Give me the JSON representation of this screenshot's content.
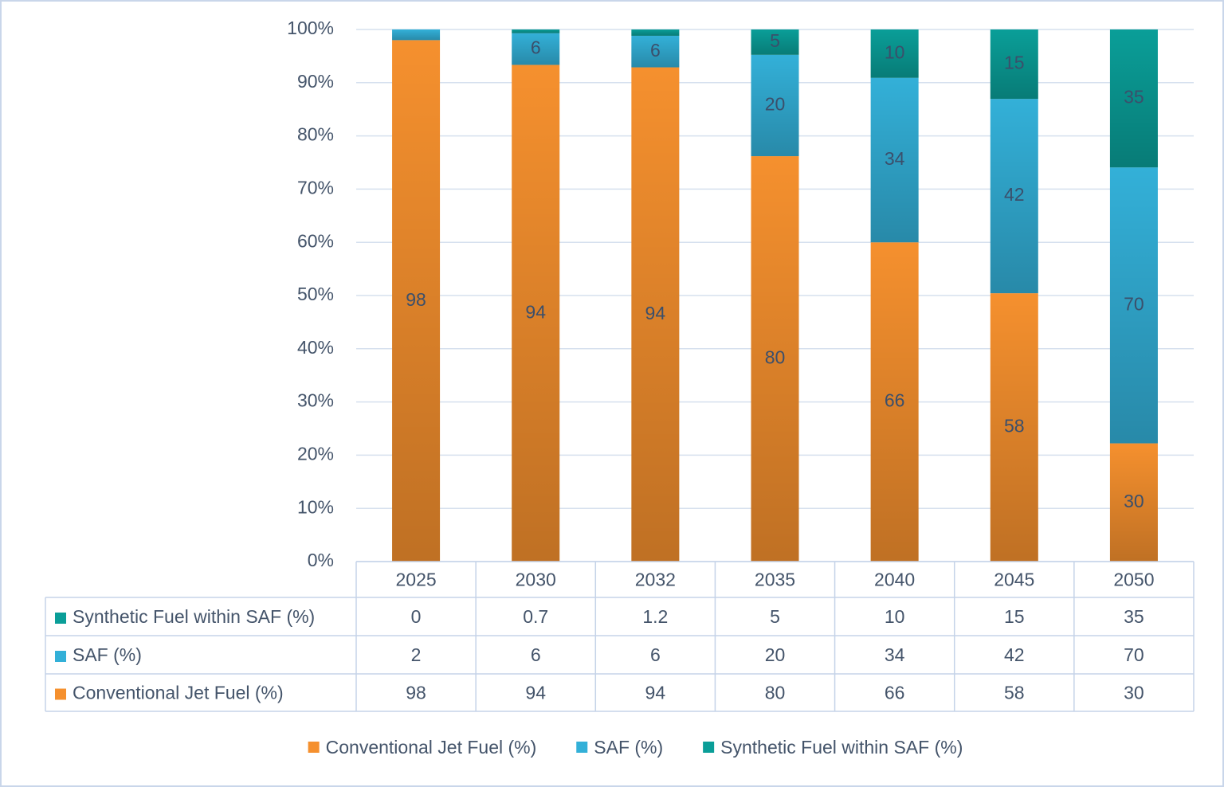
{
  "chart_data": {
    "type": "bar",
    "stacking": "percent",
    "categories": [
      "2025",
      "2030",
      "2032",
      "2035",
      "2040",
      "2045",
      "2050"
    ],
    "series": [
      {
        "name": "Conventional Jet Fuel (%)",
        "color": "#f5902e",
        "values": [
          98,
          94,
          94,
          80,
          66,
          58,
          30
        ]
      },
      {
        "name": "SAF (%)",
        "color": "#33b0d8",
        "values": [
          2,
          6,
          6,
          20,
          34,
          42,
          70
        ]
      },
      {
        "name": "Synthetic Fuel within SAF (%)",
        "color": "#0a9e98",
        "values": [
          0,
          0.7,
          1.2,
          5,
          10,
          15,
          35
        ]
      }
    ],
    "ylim": [
      0,
      100
    ],
    "yticks": [
      {
        "value": 0,
        "label": "0%"
      },
      {
        "value": 10,
        "label": "10%"
      },
      {
        "value": 20,
        "label": "20%"
      },
      {
        "value": 30,
        "label": "30%"
      },
      {
        "value": 40,
        "label": "40%"
      },
      {
        "value": 50,
        "label": "50%"
      },
      {
        "value": 60,
        "label": "60%"
      },
      {
        "value": 70,
        "label": "70%"
      },
      {
        "value": 80,
        "label": "80%"
      },
      {
        "value": 90,
        "label": "90%"
      },
      {
        "value": 100,
        "label": "100%"
      }
    ],
    "grid": true,
    "data_table": true,
    "legend": "bottom"
  }
}
